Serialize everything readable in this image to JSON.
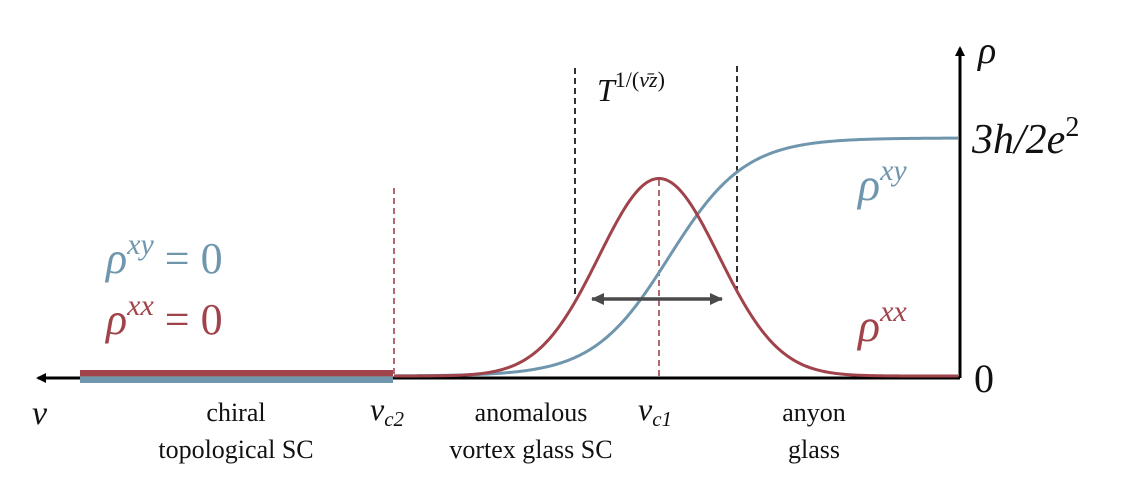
{
  "colors": {
    "rho_xx": "#a0434a",
    "rho_xy": "#6f96ad",
    "axis": "#000000",
    "arrow": "#4a4a4a"
  },
  "axis": {
    "y_label": "ρ",
    "x_label": "ν",
    "y_max_label_base": "3h/2e",
    "y_max_label_exp": "2",
    "y_zero_label": "0"
  },
  "curves": {
    "rho_xy_base": "ρ",
    "rho_xy_sup": "xy",
    "rho_xx_base": "ρ",
    "rho_xx_sup": "xx"
  },
  "left_annotations": {
    "rho_xy_eq_base": "ρ",
    "rho_xy_eq_sup": "xy",
    "rho_xy_eq_rest": " = 0",
    "rho_xx_eq_base": "ρ",
    "rho_xx_eq_sup": "xx",
    "rho_xx_eq_rest": " = 0"
  },
  "width_label": {
    "base": "T",
    "exp_prefix": "1/(",
    "exp_nu": "ν̄",
    "exp_z": "z",
    "exp_suffix": ")"
  },
  "critical_points": {
    "nu_c2_base": "ν",
    "nu_c2_sub": "c2",
    "nu_c1_base": "ν",
    "nu_c1_sub": "c1"
  },
  "phases": {
    "chiral_line1": "chiral",
    "chiral_line2": "topological SC",
    "anomalous_line1": "anomalous",
    "anomalous_line2": "vortex glass SC",
    "anyon_line1": "anyon",
    "anyon_line2": "glass"
  },
  "chart_data": {
    "type": "line",
    "series": [
      {
        "name": "rho_xx",
        "shape": "peak",
        "center": 0.5,
        "width": 0.18,
        "peak": 0.83
      },
      {
        "name": "rho_xy",
        "shape": "step",
        "center": 0.5,
        "width": 0.22,
        "max": 1.0
      }
    ],
    "ylim": [
      0,
      1
    ]
  }
}
